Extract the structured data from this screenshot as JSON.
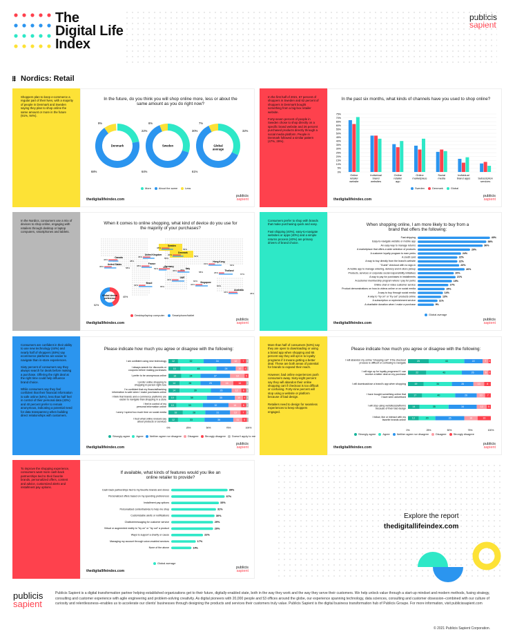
{
  "header": {
    "title_lines": [
      "The",
      "Digital Life",
      "Index"
    ],
    "brand1": "publicis",
    "brand2": "sapient",
    "section": "Nordics: Retail"
  },
  "colors": {
    "yellow": "#fde236",
    "red": "#fe414d",
    "teal": "#2ee8c7",
    "blue": "#2b95ef",
    "grey": "#b8b8b8",
    "sweden": "#2b95ef",
    "denmark": "#fe414d",
    "global": "#2ee8c7"
  },
  "common": {
    "url": "thedigitallifeindex.com",
    "logo1": "publicis",
    "logo2": "sapient"
  },
  "p1": {
    "side": [
      "Shoppers plan to keep e-commerce a regular part of their lives, with a majority of people in Denmark and Sweden saying they plan to shop online the same amount or more in the future (91%, 94%)."
    ],
    "title": "In the future, do you think you will shop online more, less or about the same amount as you do right now?",
    "legend": [
      "More",
      "About the same",
      "Less"
    ]
  },
  "p2": {
    "side": [
      "In the first half of 2021, 67 percent of shoppers in Sweden and 62 percent of shoppers in Denmark bought something from a big-box retailer website.",
      "Forty-seven percent of people in Sweden chose to shop directly on a specific brand website and 26 percent purchased products directly through a social media platform. People in Denmark followed a similar pattern (47%, 29%)."
    ],
    "title": "In the past six months, what kinds of channels have you used to shop online?",
    "legend": [
      "Sweden",
      "Denmark",
      "Global"
    ]
  },
  "p3": {
    "side": [
      "In the Nordics, consumers use a mix of devices to shop online, engaging with retailers through desktop or laptop computers, smartphones and tablets."
    ],
    "title": "When it comes to online shopping, what kind of device do you use for the majority of your purchases?",
    "legend": [
      "Desktop/laptop computer",
      "Smartphone/tablet"
    ],
    "global_label": "Global device preference"
  },
  "p4": {
    "side": [
      "Consumers prefer to shop with brands that make purchasing quick and easy.",
      "Fast shipping (40%), easy-to-navigate websites or apps (40%) and a simple returns process (40%) are primary drivers of brand choice."
    ],
    "title": "When shopping online, I am more likely to buy from a brand that offers the following:",
    "legend": [
      "Global average"
    ]
  },
  "p5": {
    "side": [
      "Consumers are confident in their ability to use new technology (44%) and nearly half of shoppers (48%) say ecommerce platforms are easier to navigate than in-store experiences.",
      "Sixty percent of consumers say they always search for deals before making a purchase. Offering the right deal at the right time could help influence brand choice.",
      "While consumers say they feel confident that their financial information is safe online (54%), less than half feel in control of their personal data (43%) and 40 percent prefer to remain anonymous, indicating a potential need for data transparency when building direct relationships with customers."
    ],
    "title": "Please indicate how much you agree or disagree with the following:",
    "legend": [
      "Strongly agree",
      "Agree",
      "Neither agree nor disagree",
      "Disagree",
      "Strongly disagree",
      "Doesn't apply to me"
    ]
  },
  "p6": {
    "side": [
      "More than half of consumers (53%) say they are open to downloading or using a brand app when shopping and 65 percent say they will opt in to loyalty programs if it means getting a better deal. These are both areas of potential for brands to expand their reach.",
      "However, bad online experiences push consumers away. Sixty-eight percent say they will abandon their online shopping cart if checkout is too difficult or confusing. Forty-nine percent will stop using a website or platform because of bad design.",
      "Retailers need to design for seamless experiences to keep shoppers engaged."
    ],
    "title": "Please indicate how much you agree or disagree with the following:",
    "legend": [
      "Strongly agree",
      "Agree",
      "Neither agree nor disagree",
      "Disagree",
      "Strongly disagree"
    ]
  },
  "p7": {
    "side": [
      "To improve the shopping experience, consumers want more cash-back partnerships tied to their favorite brands, personalized offers, content and advice, customized alerts and installment pay options."
    ],
    "title": "If available, what kinds of features would you like an online retailer to provide?",
    "legend": [
      "Global average"
    ]
  },
  "explore": {
    "line1": "Explore the report",
    "line2": "thedigitallifeindex.com"
  },
  "footer": {
    "logo1": "publicis",
    "logo2": "sapient",
    "text": "Publicis Sapient is a digital transformation partner helping established organizations get to their future, digitally-enabled state, both in the way they work and the way they serve their customers. We help unlock value through a start-up mindset and modern methods, fusing strategy, consulting and customer experience with agile engineering and problem-solving creativity. As digital pioneers with 20,000 people and 53 offices around the globe, our experience spanning technology, data sciences, consulting and customer obsession–combined with our culture of curiosity and relentlessness–enables us to accelerate our clients’ businesses through designing the products and services their customers truly value. Publicis Sapient is the digital business transformation hub of Publicis Groupe. For more information, visit publicissapient.com",
    "copyright": "© 2021 Publicis Sapient Corporation."
  },
  "chart_data": [
    {
      "type": "pie",
      "title": "In the future, do you think you will shop online more, less or about the same amount as you do right now?",
      "charts": [
        {
          "name": "Denmark",
          "values": [
            {
              "label": "More",
              "value": 22
            },
            {
              "label": "About the same",
              "value": 68
            },
            {
              "label": "Less",
              "value": 9
            }
          ]
        },
        {
          "name": "Sweden",
          "values": [
            {
              "label": "More",
              "value": 30
            },
            {
              "label": "About the same",
              "value": 64
            },
            {
              "label": "Less",
              "value": 6
            }
          ]
        },
        {
          "name": "Global average",
          "values": [
            {
              "label": "More",
              "value": 32
            },
            {
              "label": "About the same",
              "value": 61
            },
            {
              "label": "Less",
              "value": 7
            }
          ]
        }
      ]
    },
    {
      "type": "bar",
      "title": "In the past six months, what kinds of channels have you used to shop online?",
      "categories": [
        "Online retailer website",
        "Individual brand websites",
        "Online retailer app",
        "Online marketplace",
        "Social media",
        "Individual brand apps",
        "Subscription services"
      ],
      "ylim": [
        0,
        75
      ],
      "yticks": [
        "0%",
        "5%",
        "10%",
        "15%",
        "20%",
        "25%",
        "30%",
        "35%",
        "40%",
        "45%",
        "50%",
        "55%",
        "60%",
        "65%",
        "70%",
        "75%"
      ],
      "series": [
        {
          "name": "Sweden",
          "values": [
            67,
            47,
            36,
            34,
            26,
            17,
            11
          ]
        },
        {
          "name": "Denmark",
          "values": [
            62,
            47,
            32,
            29,
            29,
            12,
            13
          ]
        },
        {
          "name": "Global",
          "values": [
            71,
            43,
            40,
            43,
            27,
            19,
            8
          ]
        }
      ]
    },
    {
      "type": "map",
      "title": "When it comes to online shopping, what kind of device do you use for the majority of your purchases?",
      "series": [
        "Desktop/laptop computer",
        "Smartphone/tablet"
      ],
      "countries": [
        {
          "name": "Sweden",
          "values": [
            38,
            56
          ]
        },
        {
          "name": "Denmark",
          "values": [
            40,
            52
          ]
        },
        {
          "name": "United Kingdom",
          "values": [
            36,
            56
          ]
        },
        {
          "name": "Canada",
          "values": [
            44,
            48
          ]
        },
        {
          "name": "United States",
          "values": [
            36,
            58
          ]
        },
        {
          "name": "France",
          "values": [
            38,
            50
          ]
        },
        {
          "name": "Germany",
          "values": [
            54,
            38
          ]
        },
        {
          "name": "Italy",
          "values": [
            36,
            58
          ]
        },
        {
          "name": "Hong Kong",
          "values": [
            31,
            63
          ]
        },
        {
          "name": "Thailand",
          "values": [
            26,
            67
          ]
        },
        {
          "name": "UAE",
          "values": [
            32,
            60
          ]
        },
        {
          "name": "Singapore",
          "values": [
            34,
            60
          ]
        },
        {
          "name": "Brazil",
          "values": [
            32,
            65
          ]
        },
        {
          "name": "Australia",
          "values": [
            43,
            45
          ]
        }
      ],
      "global": {
        "name": "Global device preference",
        "values": [
          40,
          52
        ]
      }
    },
    {
      "type": "bar",
      "title": "When shopping online, I am more likely to buy from a brand that offers the following:",
      "categories": [
        "Fast shipping",
        "Easy-to-navigate website or mobile app",
        "An easy way to manage returns",
        "A marketplace that offers a wide selection of products",
        "A customer loyalty program to earn perks",
        "A credit card",
        "A way to buy directly from the brand's website",
        "\"Guest\" checkout with no sign-in",
        "A mobile app to manage ordering, delivery and in-store pickup",
        "Products, services or corporate social responsibility initiatives",
        "A way to pay for purchases in installments",
        "A customer membership program where I pay for perks",
        "Online chat or video customer service",
        "Product demonstrations on how-to videos online or on social media",
        "A way to buy through social media",
        "A way to \"try on\" or \"try out\" products online",
        "A subscription or replenishment service",
        "A charitable donation when I make a purchase"
      ],
      "series": [
        {
          "name": "Global average",
          "values": [
            40,
            38,
            36,
            29,
            24,
            22,
            22,
            23,
            26,
            20,
            21,
            19,
            17,
            15,
            14,
            13,
            11,
            9
          ]
        }
      ]
    },
    {
      "type": "bar",
      "title": "Please indicate how much you agree or disagree with the following:",
      "stacked": true,
      "categories": [
        "I am confident using new technology",
        "I always search for discounts or coupons before making purchases",
        "I prefer to be anonymous online",
        "I prefer online shopping to shopping in-person right now",
        "I'm confident that my financial/banking information is safe when I make purchases online",
        "I think that brands and e-commerce platforms are easier to navigate than shopping in a store",
        "I feel in control of my personal information online",
        "I worry I spend too much time on social media",
        "I trust what online reviews say about products or services"
      ],
      "series": [
        {
          "name": "Strongly agree",
          "values": [
            12,
            15,
            16,
            14,
            14,
            10,
            10,
            18,
            12
          ]
        },
        {
          "name": "Agree",
          "values": [
            32,
            45,
            24,
            26,
            39,
            38,
            33,
            28,
            33
          ]
        },
        {
          "name": "Neither agree nor disagree",
          "values": [
            34,
            24,
            37,
            25,
            26,
            35,
            32,
            31,
            36
          ]
        },
        {
          "name": "Disagree",
          "values": [
            12,
            10,
            18,
            16,
            12,
            10,
            16,
            13,
            11
          ]
        },
        {
          "name": "Strongly disagree",
          "values": [
            7,
            4,
            5,
            16,
            6,
            4,
            6,
            7,
            6
          ]
        },
        {
          "name": "Doesn't apply to me",
          "values": [
            3,
            2,
            0,
            3,
            3,
            3,
            3,
            3,
            2
          ]
        }
      ]
    },
    {
      "type": "bar",
      "title": "Please indicate how much you agree or disagree with the following:",
      "stacked": true,
      "categories": [
        "I will abandon my online \"shopping cart\" if the checkout process is difficult or confusing to navigate",
        "I will sign up for loyalty programs if I can receive a better deal on my purchase",
        "I will download/use a brand's app when shopping",
        "I have bought something online that I have seen advertised",
        "I will stop using websites/platforms because of their bad design",
        "I follow, like or interact with my favorite brands online"
      ],
      "series": [
        {
          "name": "Strongly agree",
          "values": [
            25,
            22,
            19,
            17,
            14,
            13
          ]
        },
        {
          "name": "Agree",
          "values": [
            43,
            43,
            34,
            40,
            35,
            20
          ]
        },
        {
          "name": "Neither agree nor disagree",
          "values": [
            22,
            26,
            26,
            26,
            34,
            35
          ]
        },
        {
          "name": "Disagree",
          "values": [
            7,
            6,
            13,
            10,
            12,
            16
          ]
        },
        {
          "name": "Strongly disagree",
          "values": [
            3,
            3,
            8,
            7,
            5,
            16
          ]
        }
      ]
    },
    {
      "type": "bar",
      "title": "If available, what kinds of features would you like an online retailer to provide?",
      "categories": [
        "Cash-back partnerships tied to my favorite brands and stores",
        "Personalized offers based on my spending preferences",
        "Installment pay options",
        "Personalized content/advice to help me shop",
        "Customizable alerts or notifications",
        "Chatbot/messaging for customer service",
        "Virtual or augmented reality to \"try on\" or \"try out\" a product",
        "Ways to support a charity or cause",
        "Managing my account through voice-enabled services",
        "None of the above"
      ],
      "series": [
        {
          "name": "Global average",
          "values": [
            39,
            37,
            33,
            31,
            30,
            29,
            29,
            22,
            17,
            14
          ]
        }
      ]
    }
  ]
}
